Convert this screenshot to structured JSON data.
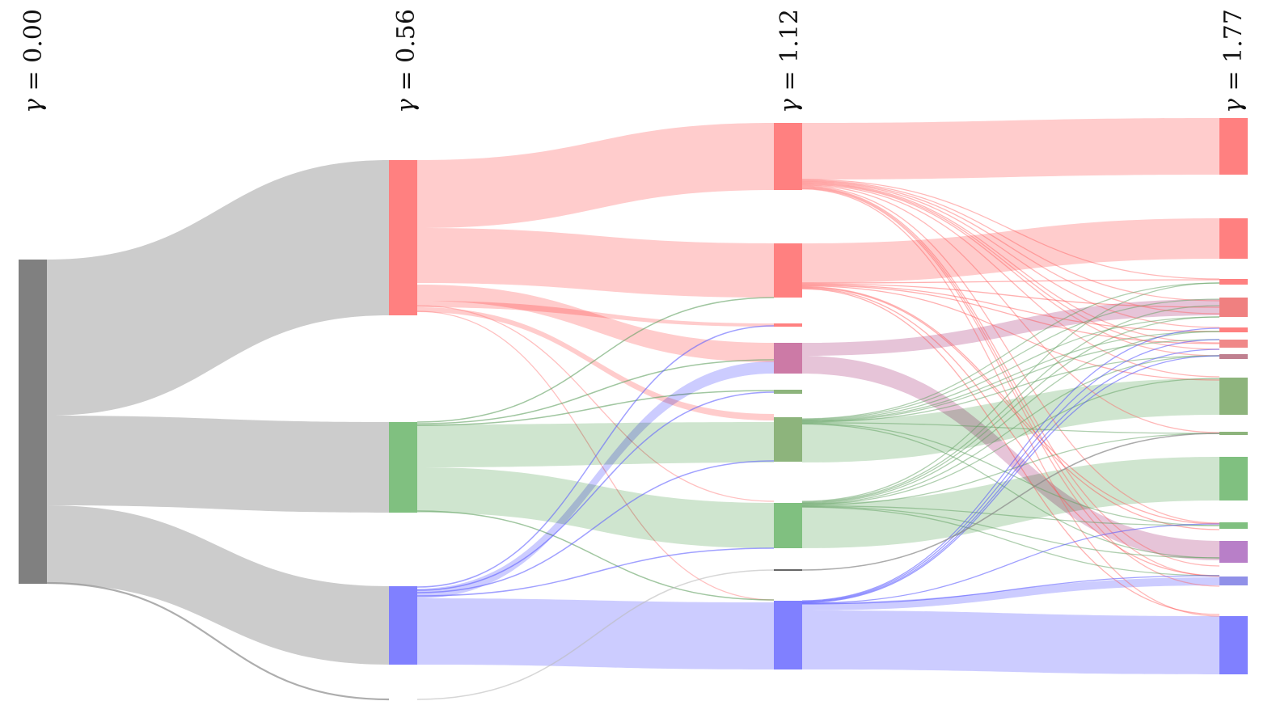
{
  "diagram": {
    "type": "sankey",
    "columns": [
      {
        "label_var": "γ",
        "label_eq": " = ",
        "value": "0.00"
      },
      {
        "label_var": "γ",
        "label_eq": " = ",
        "value": "0.56"
      },
      {
        "label_var": "γ",
        "label_eq": " = ",
        "value": "1.12"
      },
      {
        "label_var": "γ",
        "label_eq": " = ",
        "value": "1.77"
      }
    ],
    "colors": {
      "root": "#808080",
      "red": "#ff8080",
      "green": "#80c080",
      "blue": "#8080ff",
      "olive": "#8db47c",
      "pink": "#cc7aa6",
      "purple": "#b87fc8",
      "periwinkle": "#9090e8",
      "grey_link": "#cccccc",
      "red_link": "#ffcccc",
      "green_link": "#cfe5cf",
      "blue_link": "#ccccff",
      "pink_link": "#e6c4d8"
    }
  }
}
